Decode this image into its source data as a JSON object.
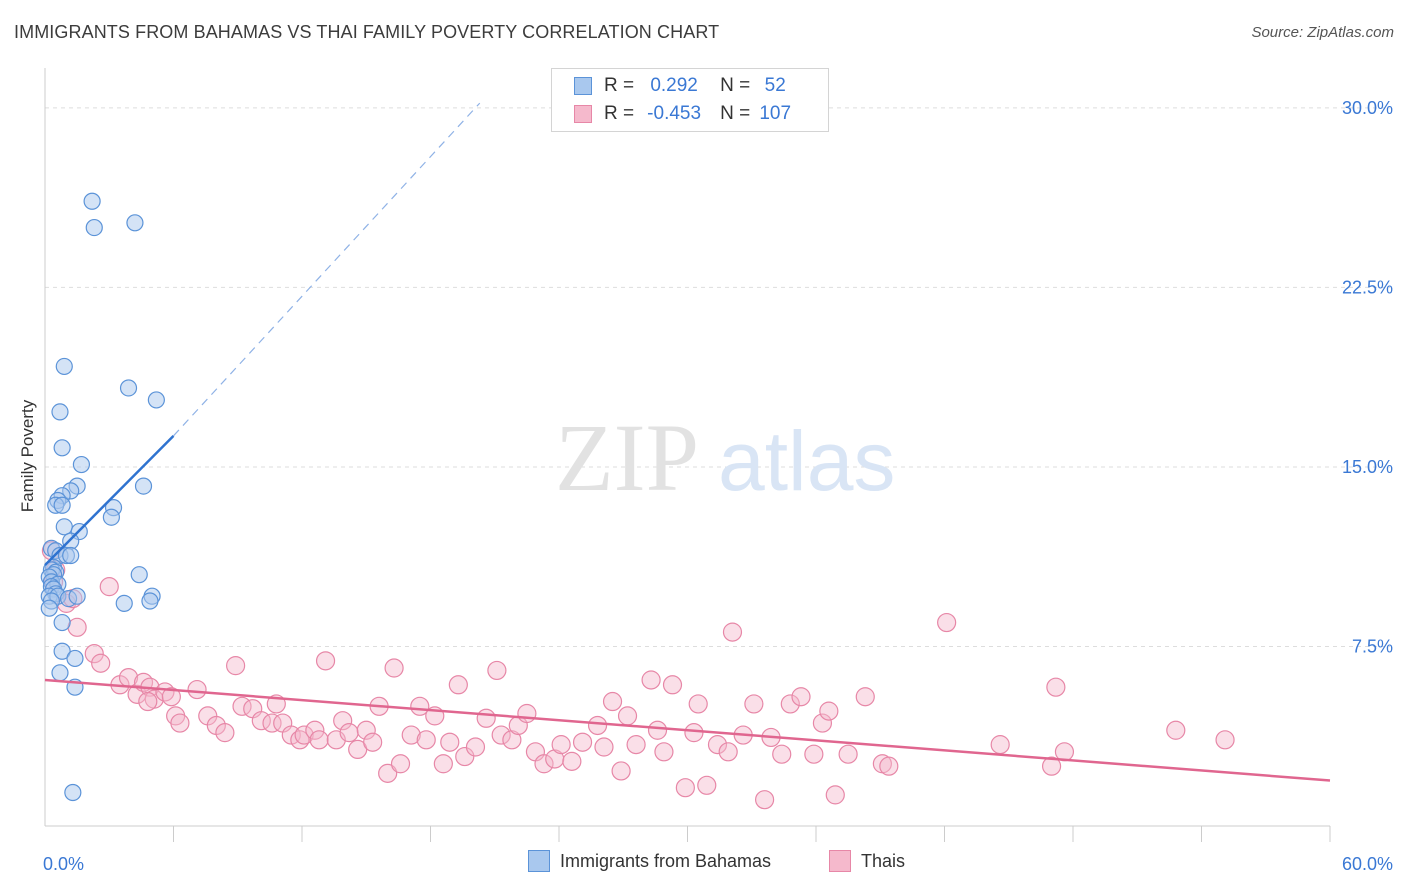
{
  "header": {
    "title": "IMMIGRANTS FROM BAHAMAS VS THAI FAMILY POVERTY CORRELATION CHART",
    "source": "Source: ZipAtlas.com"
  },
  "watermark": {
    "zip": "ZIP",
    "atlas": "atlas"
  },
  "legend": {
    "rows": [
      {
        "r_label": "R = ",
        "r_value": "0.292",
        "n_label": "N = ",
        "n_value": "52"
      },
      {
        "r_label": "R = ",
        "r_value": "-0.453",
        "n_label": "N = ",
        "n_value": "107"
      }
    ]
  },
  "bottom_legend": {
    "series1": "Immigrants from Bahamas",
    "series2": "Thais"
  },
  "colors": {
    "blue_fill": "#a9c8ee",
    "blue_stroke": "#5b93d8",
    "blue_line": "#2f73d0",
    "pink_fill": "#f5b9cc",
    "pink_stroke": "#e787a7",
    "pink_line": "#e0668f",
    "grid": "#dddddd",
    "tick_label": "#3a78d4"
  },
  "chart_data": {
    "type": "scatter",
    "ylabel": "Family Poverty",
    "xlim": [
      0,
      60
    ],
    "ylim": [
      0,
      31.5
    ],
    "x_tick_labels": [
      {
        "value": 0,
        "label": "0.0%"
      },
      {
        "value": 60,
        "label": "60.0%"
      }
    ],
    "y_tick_labels": [
      {
        "value": 7.5,
        "label": "7.5%"
      },
      {
        "value": 15,
        "label": "15.0%"
      },
      {
        "value": 22.5,
        "label": "22.5%"
      },
      {
        "value": 30,
        "label": "30.0%"
      }
    ],
    "grid": true,
    "series": [
      {
        "name": "Immigrants from Bahamas",
        "r": 0.292,
        "n": 52,
        "trend": {
          "x": [
            0,
            6
          ],
          "y": [
            10.9,
            16.3
          ],
          "dashed_to": [
            20.3,
            30.2
          ]
        },
        "points": [
          [
            2.2,
            26.1
          ],
          [
            2.3,
            25.0
          ],
          [
            4.2,
            25.2
          ],
          [
            0.9,
            19.2
          ],
          [
            3.9,
            18.3
          ],
          [
            5.2,
            17.8
          ],
          [
            0.7,
            17.3
          ],
          [
            0.8,
            15.8
          ],
          [
            1.7,
            15.1
          ],
          [
            1.5,
            14.2
          ],
          [
            4.6,
            14.2
          ],
          [
            1.2,
            14.0
          ],
          [
            0.8,
            13.8
          ],
          [
            0.6,
            13.6
          ],
          [
            0.5,
            13.4
          ],
          [
            0.8,
            13.4
          ],
          [
            3.2,
            13.3
          ],
          [
            3.1,
            12.9
          ],
          [
            0.9,
            12.5
          ],
          [
            1.6,
            12.3
          ],
          [
            1.2,
            11.9
          ],
          [
            0.3,
            11.6
          ],
          [
            0.5,
            11.5
          ],
          [
            0.7,
            11.3
          ],
          [
            1.0,
            11.3
          ],
          [
            1.2,
            11.3
          ],
          [
            0.4,
            10.8
          ],
          [
            0.3,
            10.7
          ],
          [
            0.5,
            10.6
          ],
          [
            0.4,
            10.5
          ],
          [
            0.2,
            10.4
          ],
          [
            0.3,
            10.2
          ],
          [
            0.6,
            10.1
          ],
          [
            0.3,
            10.0
          ],
          [
            4.4,
            10.5
          ],
          [
            0.4,
            9.9
          ],
          [
            0.5,
            9.7
          ],
          [
            0.2,
            9.6
          ],
          [
            0.6,
            9.6
          ],
          [
            0.3,
            9.4
          ],
          [
            1.1,
            9.5
          ],
          [
            1.5,
            9.6
          ],
          [
            5.0,
            9.6
          ],
          [
            4.9,
            9.4
          ],
          [
            3.7,
            9.3
          ],
          [
            0.2,
            9.1
          ],
          [
            0.8,
            8.5
          ],
          [
            0.8,
            7.3
          ],
          [
            1.4,
            7.0
          ],
          [
            0.7,
            6.4
          ],
          [
            1.4,
            5.8
          ],
          [
            1.3,
            1.4
          ]
        ]
      },
      {
        "name": "Thais",
        "r": -0.453,
        "n": 107,
        "trend": {
          "x": [
            0,
            60
          ],
          "y": [
            6.1,
            1.9
          ]
        },
        "points": [
          [
            0.3,
            11.5
          ],
          [
            0.5,
            10.7
          ],
          [
            0.4,
            10.2
          ],
          [
            1.0,
            9.3
          ],
          [
            1.3,
            9.5
          ],
          [
            1.5,
            8.3
          ],
          [
            3.0,
            10.0
          ],
          [
            2.3,
            7.2
          ],
          [
            2.6,
            6.8
          ],
          [
            3.5,
            5.9
          ],
          [
            3.9,
            6.2
          ],
          [
            4.3,
            5.5
          ],
          [
            4.6,
            6.0
          ],
          [
            4.9,
            5.8
          ],
          [
            5.1,
            5.3
          ],
          [
            4.8,
            5.2
          ],
          [
            5.6,
            5.6
          ],
          [
            5.9,
            5.4
          ],
          [
            6.1,
            4.6
          ],
          [
            6.3,
            4.3
          ],
          [
            7.1,
            5.7
          ],
          [
            7.6,
            4.6
          ],
          [
            8.0,
            4.2
          ],
          [
            8.4,
            3.9
          ],
          [
            8.9,
            6.7
          ],
          [
            9.2,
            5.0
          ],
          [
            9.7,
            4.9
          ],
          [
            10.1,
            4.4
          ],
          [
            10.6,
            4.3
          ],
          [
            10.8,
            5.1
          ],
          [
            11.1,
            4.3
          ],
          [
            11.5,
            3.8
          ],
          [
            11.9,
            3.6
          ],
          [
            12.1,
            3.8
          ],
          [
            12.6,
            4.0
          ],
          [
            12.8,
            3.6
          ],
          [
            13.1,
            6.9
          ],
          [
            13.6,
            3.6
          ],
          [
            13.9,
            4.4
          ],
          [
            14.2,
            3.9
          ],
          [
            14.6,
            3.2
          ],
          [
            15.0,
            4.0
          ],
          [
            15.3,
            3.5
          ],
          [
            15.6,
            5.0
          ],
          [
            16.0,
            2.2
          ],
          [
            16.3,
            6.6
          ],
          [
            16.6,
            2.6
          ],
          [
            17.1,
            3.8
          ],
          [
            17.5,
            5.0
          ],
          [
            17.8,
            3.6
          ],
          [
            18.2,
            4.6
          ],
          [
            18.6,
            2.6
          ],
          [
            18.9,
            3.5
          ],
          [
            19.3,
            5.9
          ],
          [
            19.6,
            2.9
          ],
          [
            20.1,
            3.3
          ],
          [
            20.6,
            4.5
          ],
          [
            21.1,
            6.5
          ],
          [
            21.3,
            3.8
          ],
          [
            21.8,
            3.6
          ],
          [
            22.1,
            4.2
          ],
          [
            22.5,
            4.7
          ],
          [
            22.9,
            3.1
          ],
          [
            23.3,
            2.6
          ],
          [
            23.8,
            2.8
          ],
          [
            24.1,
            3.4
          ],
          [
            24.6,
            2.7
          ],
          [
            25.1,
            3.5
          ],
          [
            25.8,
            4.2
          ],
          [
            26.1,
            3.3
          ],
          [
            26.5,
            5.2
          ],
          [
            26.9,
            2.3
          ],
          [
            27.2,
            4.6
          ],
          [
            27.6,
            3.4
          ],
          [
            28.3,
            6.1
          ],
          [
            28.6,
            4.0
          ],
          [
            28.9,
            3.1
          ],
          [
            29.3,
            5.9
          ],
          [
            29.9,
            1.6
          ],
          [
            30.3,
            3.9
          ],
          [
            30.5,
            5.1
          ],
          [
            30.9,
            1.7
          ],
          [
            31.4,
            3.4
          ],
          [
            31.9,
            3.1
          ],
          [
            32.1,
            8.1
          ],
          [
            32.6,
            3.8
          ],
          [
            33.1,
            5.1
          ],
          [
            33.6,
            1.1
          ],
          [
            33.9,
            3.7
          ],
          [
            34.4,
            3.0
          ],
          [
            34.8,
            5.1
          ],
          [
            35.3,
            5.4
          ],
          [
            35.9,
            3.0
          ],
          [
            36.3,
            4.3
          ],
          [
            36.6,
            4.8
          ],
          [
            36.9,
            1.3
          ],
          [
            37.5,
            3.0
          ],
          [
            38.3,
            5.4
          ],
          [
            39.1,
            2.6
          ],
          [
            39.4,
            2.5
          ],
          [
            42.1,
            8.5
          ],
          [
            44.6,
            3.4
          ],
          [
            47.0,
            2.5
          ],
          [
            47.2,
            5.8
          ],
          [
            47.6,
            3.1
          ],
          [
            52.8,
            4.0
          ],
          [
            55.1,
            3.6
          ]
        ]
      }
    ]
  }
}
